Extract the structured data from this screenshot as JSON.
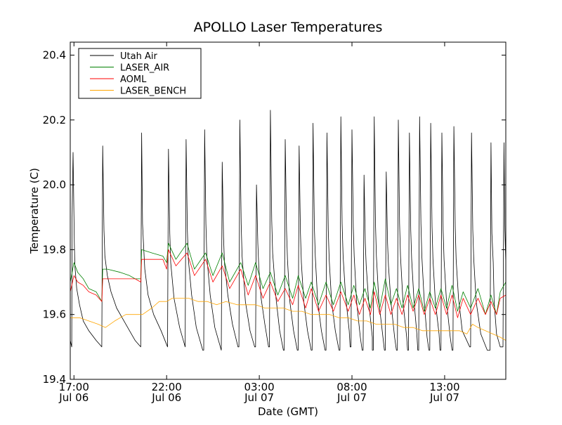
{
  "chart_data": {
    "type": "line",
    "title": "APOLLO Laser Temperatures",
    "xlabel": "Date (GMT)",
    "ylabel": "Temperature (C)",
    "xlim": [
      16.8,
      40.3
    ],
    "ylim": [
      19.4,
      20.44
    ],
    "x_unit": "hours since Jul 06 00:00 GMT",
    "x_ticks": [
      {
        "value": 17,
        "line1": "17:00",
        "line2": "Jul 06"
      },
      {
        "value": 22,
        "line1": "22:00",
        "line2": "Jul 06"
      },
      {
        "value": 27,
        "line1": "03:00",
        "line2": "Jul 07"
      },
      {
        "value": 32,
        "line1": "08:00",
        "line2": "Jul 07"
      },
      {
        "value": 37,
        "line1": "13:00",
        "line2": "Jul 07"
      }
    ],
    "y_ticks": [
      {
        "value": 19.4,
        "label": "19.4"
      },
      {
        "value": 19.6,
        "label": "19.6"
      },
      {
        "value": 19.8,
        "label": "19.8"
      },
      {
        "value": 20.0,
        "label": "20.0"
      },
      {
        "value": 20.2,
        "label": "20.2"
      },
      {
        "value": 20.4,
        "label": "20.4"
      }
    ],
    "legend_position": "top-left",
    "series": [
      {
        "name": "Utah Air",
        "color": "#000000",
        "x": [
          16.8,
          16.88,
          16.9,
          16.95,
          17.02,
          17.05,
          17.15,
          17.3,
          17.5,
          17.8,
          18.2,
          18.5,
          18.5,
          18.55,
          18.62,
          18.67,
          18.8,
          19.0,
          19.3,
          19.7,
          20.0,
          20.3,
          20.6,
          20.65,
          20.7,
          20.77,
          20.82,
          21.0,
          21.3,
          21.7,
          22.05,
          22.05,
          22.1,
          22.17,
          22.22,
          22.4,
          22.7,
          23.0,
          23.0,
          23.05,
          23.12,
          23.17,
          23.35,
          23.6,
          23.95,
          24.0,
          24.05,
          24.12,
          24.17,
          24.35,
          24.6,
          24.95,
          24.95,
          25.0,
          25.07,
          25.12,
          25.3,
          25.55,
          25.85,
          25.9,
          25.95,
          26.02,
          26.07,
          26.25,
          26.5,
          26.75,
          26.8,
          26.85,
          26.92,
          26.97,
          27.1,
          27.3,
          27.5,
          27.55,
          27.6,
          27.67,
          27.72,
          27.9,
          28.1,
          28.3,
          28.35,
          28.4,
          28.47,
          28.52,
          28.65,
          28.85,
          29.05,
          29.1,
          29.15,
          29.22,
          29.27,
          29.4,
          29.6,
          29.8,
          29.85,
          29.9,
          29.97,
          30.02,
          30.15,
          30.35,
          30.55,
          30.6,
          30.65,
          30.72,
          30.77,
          30.9,
          31.1,
          31.3,
          31.35,
          31.4,
          31.47,
          31.52,
          31.65,
          31.85,
          31.9,
          31.95,
          32.0,
          32.07,
          32.12,
          32.25,
          32.45,
          32.55,
          32.6,
          32.65,
          32.72,
          32.77,
          32.9,
          33.1,
          33.1,
          33.15,
          33.2,
          33.27,
          33.32,
          33.45,
          33.65,
          33.75,
          33.8,
          33.85,
          33.92,
          33.97,
          34.1,
          34.3,
          34.4,
          34.45,
          34.5,
          34.57,
          34.62,
          34.75,
          34.95,
          35.0,
          35.05,
          35.1,
          35.17,
          35.22,
          35.35,
          35.5,
          35.55,
          35.6,
          35.65,
          35.72,
          35.77,
          35.9,
          36.05,
          36.15,
          36.2,
          36.25,
          36.32,
          36.37,
          36.5,
          36.7,
          36.75,
          36.8,
          36.85,
          36.92,
          36.97,
          37.1,
          37.3,
          37.4,
          37.45,
          37.5,
          37.57,
          37.62,
          37.75,
          37.95,
          38.35,
          38.4,
          38.45,
          38.52,
          38.57,
          38.7,
          38.95,
          39.3,
          39.45,
          39.5,
          39.55,
          39.62,
          39.67,
          39.8,
          40.0,
          40.15,
          40.2,
          40.25,
          40.3
        ],
        "y": [
          19.52,
          19.5,
          19.9,
          20.1,
          19.82,
          19.75,
          19.68,
          19.63,
          19.58,
          19.55,
          19.52,
          19.5,
          19.5,
          20.12,
          19.86,
          19.78,
          19.72,
          19.67,
          19.62,
          19.58,
          19.55,
          19.52,
          19.5,
          20.16,
          19.88,
          19.8,
          19.74,
          19.66,
          19.6,
          19.55,
          19.5,
          19.5,
          20.11,
          19.85,
          19.76,
          19.65,
          19.56,
          19.5,
          19.5,
          20.14,
          19.86,
          19.77,
          19.66,
          19.56,
          19.49,
          19.49,
          20.17,
          19.88,
          19.78,
          19.66,
          19.56,
          19.49,
          19.49,
          20.07,
          19.84,
          19.76,
          19.66,
          19.57,
          19.5,
          19.5,
          20.2,
          19.88,
          19.78,
          19.64,
          19.55,
          19.5,
          19.5,
          20.0,
          19.82,
          19.75,
          19.65,
          19.57,
          19.5,
          19.5,
          20.23,
          19.89,
          19.79,
          19.65,
          19.55,
          19.49,
          19.49,
          20.14,
          19.86,
          19.77,
          19.64,
          19.55,
          19.49,
          19.49,
          20.12,
          19.85,
          19.76,
          19.64,
          19.55,
          19.49,
          19.49,
          20.19,
          19.87,
          19.78,
          19.64,
          19.55,
          19.49,
          19.49,
          20.16,
          19.86,
          19.77,
          19.64,
          19.55,
          19.49,
          19.49,
          20.21,
          19.88,
          19.78,
          19.66,
          19.55,
          19.5,
          19.5,
          20.17,
          19.87,
          19.78,
          19.64,
          19.53,
          19.49,
          19.49,
          20.03,
          19.82,
          19.75,
          19.64,
          19.53,
          19.49,
          19.49,
          20.21,
          19.88,
          19.78,
          19.64,
          19.54,
          19.49,
          19.49,
          20.04,
          19.82,
          19.75,
          19.64,
          19.53,
          19.49,
          19.49,
          20.2,
          19.88,
          19.78,
          19.64,
          19.53,
          19.49,
          19.49,
          20.16,
          19.86,
          19.77,
          19.64,
          19.54,
          19.49,
          19.49,
          20.21,
          19.88,
          19.78,
          19.64,
          19.53,
          19.49,
          19.49,
          20.19,
          19.87,
          19.77,
          19.64,
          19.54,
          19.49,
          19.49,
          20.16,
          19.86,
          19.77,
          19.64,
          19.53,
          19.49,
          19.49,
          20.18,
          19.87,
          19.77,
          19.65,
          19.55,
          19.5,
          19.5,
          20.16,
          19.86,
          19.77,
          19.64,
          19.54,
          19.49,
          19.49,
          20.13,
          19.85,
          19.76,
          19.64,
          19.54,
          19.5,
          19.5,
          20.13,
          19.86,
          19.76
        ]
      },
      {
        "name": "LASER_AIR",
        "color": "#008000",
        "x": [
          16.8,
          17.0,
          17.2,
          17.5,
          17.8,
          18.2,
          18.5,
          18.55,
          18.8,
          19.5,
          20.0,
          20.3,
          20.6,
          20.65,
          21.2,
          21.8,
          22.0,
          22.1,
          22.5,
          23.1,
          23.5,
          24.1,
          24.5,
          25.0,
          25.4,
          26.0,
          26.4,
          26.8,
          27.2,
          27.6,
          28.0,
          28.4,
          28.8,
          29.1,
          29.5,
          29.8,
          30.2,
          30.6,
          31.0,
          31.4,
          31.8,
          32.1,
          32.4,
          32.7,
          33.0,
          33.2,
          33.5,
          33.8,
          34.1,
          34.4,
          34.7,
          35.0,
          35.3,
          35.6,
          35.9,
          36.2,
          36.5,
          36.8,
          37.1,
          37.4,
          37.7,
          38.0,
          38.4,
          38.8,
          39.2,
          39.5,
          39.8,
          40.0,
          40.3
        ],
        "y": [
          19.7,
          19.76,
          19.73,
          19.71,
          19.68,
          19.67,
          19.64,
          19.74,
          19.74,
          19.73,
          19.72,
          19.71,
          19.71,
          19.8,
          19.79,
          19.78,
          19.76,
          19.82,
          19.77,
          19.82,
          19.74,
          19.79,
          19.72,
          19.79,
          19.7,
          19.76,
          19.69,
          19.76,
          19.68,
          19.73,
          19.66,
          19.72,
          19.65,
          19.72,
          19.65,
          19.7,
          19.63,
          19.7,
          19.63,
          19.7,
          19.63,
          19.69,
          19.63,
          19.68,
          19.62,
          19.7,
          19.62,
          19.71,
          19.63,
          19.68,
          19.62,
          19.69,
          19.62,
          19.68,
          19.61,
          19.67,
          19.62,
          19.68,
          19.62,
          19.69,
          19.61,
          19.67,
          19.62,
          19.68,
          19.6,
          19.66,
          19.6,
          19.67,
          19.7
        ]
      },
      {
        "name": "AOML",
        "color": "#ff0000",
        "x": [
          16.8,
          17.0,
          17.2,
          17.5,
          17.8,
          18.2,
          18.5,
          18.55,
          18.8,
          19.5,
          20.0,
          20.3,
          20.6,
          20.65,
          21.2,
          21.8,
          22.0,
          22.1,
          22.5,
          23.1,
          23.5,
          24.1,
          24.5,
          25.0,
          25.4,
          26.0,
          26.4,
          26.8,
          27.2,
          27.6,
          28.0,
          28.4,
          28.8,
          29.1,
          29.5,
          29.8,
          30.2,
          30.6,
          31.0,
          31.4,
          31.8,
          32.1,
          32.4,
          32.7,
          33.0,
          33.2,
          33.5,
          33.8,
          34.1,
          34.4,
          34.7,
          35.0,
          35.3,
          35.6,
          35.9,
          36.2,
          36.5,
          36.8,
          37.1,
          37.4,
          37.7,
          38.0,
          38.4,
          38.8,
          39.2,
          39.5,
          39.8,
          40.0,
          40.3
        ],
        "y": [
          19.67,
          19.72,
          19.7,
          19.69,
          19.67,
          19.66,
          19.64,
          19.71,
          19.71,
          19.71,
          19.71,
          19.71,
          19.7,
          19.77,
          19.77,
          19.77,
          19.74,
          19.8,
          19.75,
          19.79,
          19.72,
          19.77,
          19.7,
          19.75,
          19.68,
          19.74,
          19.66,
          19.72,
          19.65,
          19.7,
          19.64,
          19.68,
          19.63,
          19.69,
          19.62,
          19.68,
          19.61,
          19.66,
          19.61,
          19.67,
          19.61,
          19.66,
          19.6,
          19.65,
          19.6,
          19.67,
          19.6,
          19.66,
          19.6,
          19.65,
          19.6,
          19.66,
          19.61,
          19.66,
          19.6,
          19.65,
          19.6,
          19.66,
          19.6,
          19.66,
          19.59,
          19.65,
          19.6,
          19.65,
          19.6,
          19.64,
          19.6,
          19.65,
          19.66
        ]
      },
      {
        "name": "LASER_BENCH",
        "color": "#ffa500",
        "x": [
          16.8,
          17.3,
          17.8,
          18.3,
          18.7,
          19.2,
          19.8,
          20.3,
          20.7,
          21.2,
          21.6,
          22.0,
          22.3,
          22.7,
          23.2,
          23.7,
          24.2,
          24.7,
          25.2,
          25.8,
          26.3,
          26.8,
          27.3,
          27.8,
          28.3,
          28.8,
          29.3,
          29.8,
          30.3,
          30.8,
          31.3,
          31.8,
          32.3,
          32.8,
          33.3,
          33.8,
          34.3,
          34.8,
          35.3,
          35.8,
          36.3,
          36.8,
          37.3,
          37.8,
          38.2,
          38.5,
          38.8,
          39.2,
          39.6,
          40.0,
          40.3
        ],
        "y": [
          19.59,
          19.59,
          19.58,
          19.57,
          19.56,
          19.58,
          19.6,
          19.6,
          19.6,
          19.62,
          19.64,
          19.64,
          19.65,
          19.65,
          19.65,
          19.64,
          19.64,
          19.63,
          19.64,
          19.63,
          19.63,
          19.63,
          19.62,
          19.62,
          19.62,
          19.61,
          19.61,
          19.6,
          19.6,
          19.6,
          19.59,
          19.59,
          19.58,
          19.58,
          19.57,
          19.57,
          19.57,
          19.56,
          19.56,
          19.55,
          19.55,
          19.55,
          19.55,
          19.55,
          19.54,
          19.57,
          19.56,
          19.55,
          19.54,
          19.53,
          19.52
        ]
      }
    ]
  }
}
